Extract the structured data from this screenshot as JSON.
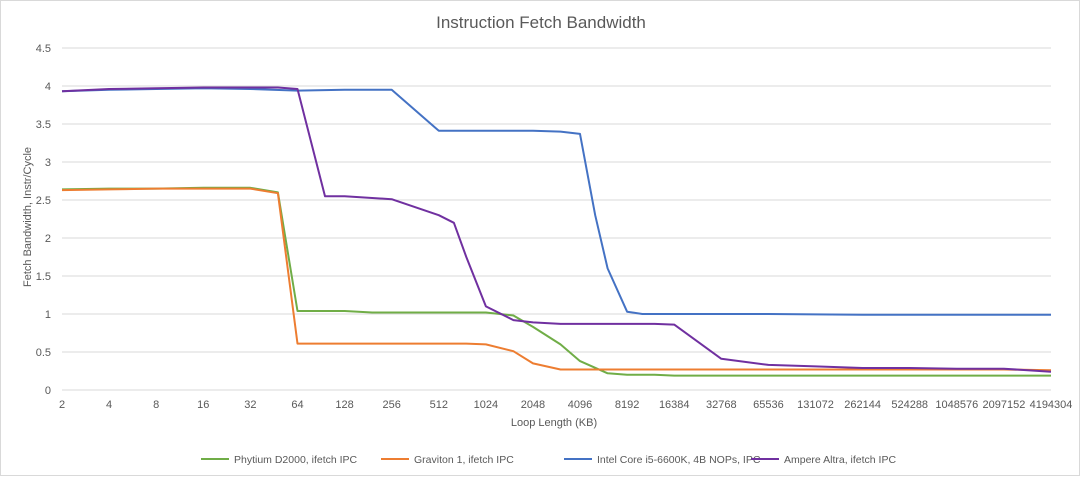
{
  "chart_data": {
    "type": "line",
    "title": "Instruction Fetch Bandwidth",
    "xlabel": "Loop Length  (KB)",
    "ylabel": "Fetch Bandwidth, Instr/Cycle",
    "x_scale": "log2",
    "x_ticks": [
      "2",
      "4",
      "8",
      "16",
      "32",
      "64",
      "128",
      "256",
      "512",
      "1024",
      "2048",
      "4096",
      "8192",
      "16384",
      "32768",
      "65536",
      "131072",
      "262144",
      "524288",
      "1048576",
      "2097152",
      "4194304"
    ],
    "y_ticks": [
      "0",
      "0.5",
      "1",
      "1.5",
      "2",
      "2.5",
      "3",
      "3.5",
      "4",
      "4.5"
    ],
    "ylim": [
      0,
      4.5
    ],
    "xlim": [
      2,
      4194304
    ],
    "grid": "horizontal",
    "legend_position": "bottom",
    "series": [
      {
        "name": "Phytium D2000, ifetch IPC",
        "color": "#70ad47",
        "points": [
          [
            2,
            2.64
          ],
          [
            4,
            2.65
          ],
          [
            8,
            2.65
          ],
          [
            16,
            2.66
          ],
          [
            32,
            2.66
          ],
          [
            48,
            2.6
          ],
          [
            64,
            1.04
          ],
          [
            128,
            1.04
          ],
          [
            192,
            1.02
          ],
          [
            256,
            1.02
          ],
          [
            512,
            1.02
          ],
          [
            1024,
            1.02
          ],
          [
            1536,
            0.98
          ],
          [
            2048,
            0.83
          ],
          [
            3072,
            0.6
          ],
          [
            4096,
            0.38
          ],
          [
            6144,
            0.22
          ],
          [
            8192,
            0.2
          ],
          [
            12288,
            0.2
          ],
          [
            16384,
            0.19
          ],
          [
            65536,
            0.19
          ],
          [
            262144,
            0.19
          ],
          [
            1048576,
            0.19
          ],
          [
            4194304,
            0.19
          ]
        ]
      },
      {
        "name": "Graviton 1, ifetch IPC",
        "color": "#ed7d31",
        "points": [
          [
            2,
            2.63
          ],
          [
            4,
            2.64
          ],
          [
            8,
            2.65
          ],
          [
            16,
            2.65
          ],
          [
            32,
            2.65
          ],
          [
            48,
            2.59
          ],
          [
            64,
            0.61
          ],
          [
            128,
            0.61
          ],
          [
            256,
            0.61
          ],
          [
            512,
            0.61
          ],
          [
            768,
            0.61
          ],
          [
            1024,
            0.6
          ],
          [
            1536,
            0.51
          ],
          [
            2048,
            0.35
          ],
          [
            3072,
            0.27
          ],
          [
            4096,
            0.27
          ],
          [
            8192,
            0.27
          ],
          [
            65536,
            0.27
          ],
          [
            1048576,
            0.27
          ],
          [
            2097152,
            0.27
          ],
          [
            4194304,
            0.26
          ]
        ]
      },
      {
        "name": "Intel Core i5-6600K, 4B NOPs, IPC",
        "color": "#4472c4",
        "points": [
          [
            2,
            3.93
          ],
          [
            4,
            3.95
          ],
          [
            8,
            3.96
          ],
          [
            16,
            3.97
          ],
          [
            32,
            3.96
          ],
          [
            64,
            3.94
          ],
          [
            128,
            3.95
          ],
          [
            256,
            3.95
          ],
          [
            512,
            3.41
          ],
          [
            1024,
            3.41
          ],
          [
            2048,
            3.41
          ],
          [
            3072,
            3.4
          ],
          [
            4096,
            3.37
          ],
          [
            5120,
            2.3
          ],
          [
            6144,
            1.6
          ],
          [
            8192,
            1.03
          ],
          [
            10240,
            1.0
          ],
          [
            16384,
            1.0
          ],
          [
            65536,
            1.0
          ],
          [
            262144,
            0.99
          ],
          [
            524288,
            0.99
          ],
          [
            1048576,
            0.99
          ],
          [
            2097152,
            0.99
          ],
          [
            4194304,
            0.99
          ]
        ]
      },
      {
        "name": "Ampere Altra, ifetch IPC",
        "color": "#7030a0",
        "points": [
          [
            2,
            3.93
          ],
          [
            4,
            3.96
          ],
          [
            8,
            3.97
          ],
          [
            16,
            3.98
          ],
          [
            32,
            3.98
          ],
          [
            48,
            3.98
          ],
          [
            64,
            3.96
          ],
          [
            96,
            2.55
          ],
          [
            128,
            2.55
          ],
          [
            256,
            2.51
          ],
          [
            512,
            2.3
          ],
          [
            640,
            2.2
          ],
          [
            768,
            1.75
          ],
          [
            1024,
            1.1
          ],
          [
            1536,
            0.92
          ],
          [
            2048,
            0.89
          ],
          [
            3072,
            0.87
          ],
          [
            4096,
            0.87
          ],
          [
            8192,
            0.87
          ],
          [
            12288,
            0.87
          ],
          [
            16384,
            0.86
          ],
          [
            32768,
            0.41
          ],
          [
            65536,
            0.33
          ],
          [
            131072,
            0.31
          ],
          [
            262144,
            0.29
          ],
          [
            524288,
            0.29
          ],
          [
            1048576,
            0.28
          ],
          [
            2097152,
            0.28
          ],
          [
            4194304,
            0.24
          ]
        ]
      }
    ]
  }
}
